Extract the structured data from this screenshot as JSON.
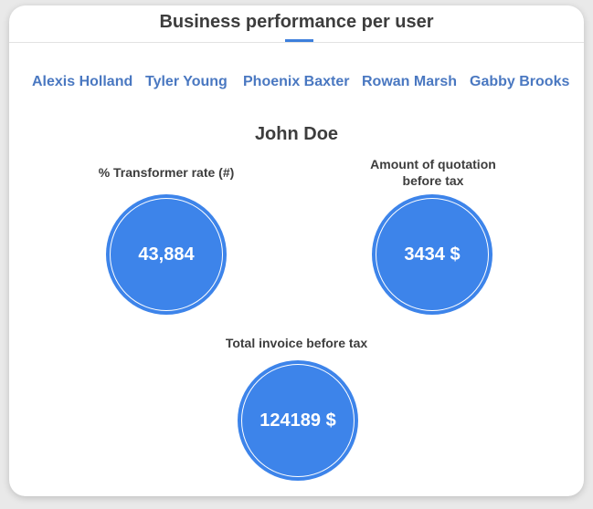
{
  "card": {
    "title": "Business performance per user"
  },
  "users": [
    {
      "name": "Alexis Holland"
    },
    {
      "name": "Tyler Young"
    },
    {
      "name": "Phoenix Baxter"
    },
    {
      "name": "Rowan Marsh"
    },
    {
      "name": "Gabby Brooks"
    }
  ],
  "selected_user": "John Doe",
  "metrics": {
    "transformer_rate": {
      "label": "% Transformer rate (#)",
      "value": "43,884"
    },
    "quotation_amount": {
      "label_line1": "Amount of quotation",
      "label_line2": "before tax",
      "value": "3434 $"
    },
    "total_invoice": {
      "label": "Total invoice before tax",
      "value": "124189 $"
    }
  },
  "colors": {
    "accent": "#3d84ea",
    "link": "#4a78c1",
    "text": "#3d3d3d"
  }
}
